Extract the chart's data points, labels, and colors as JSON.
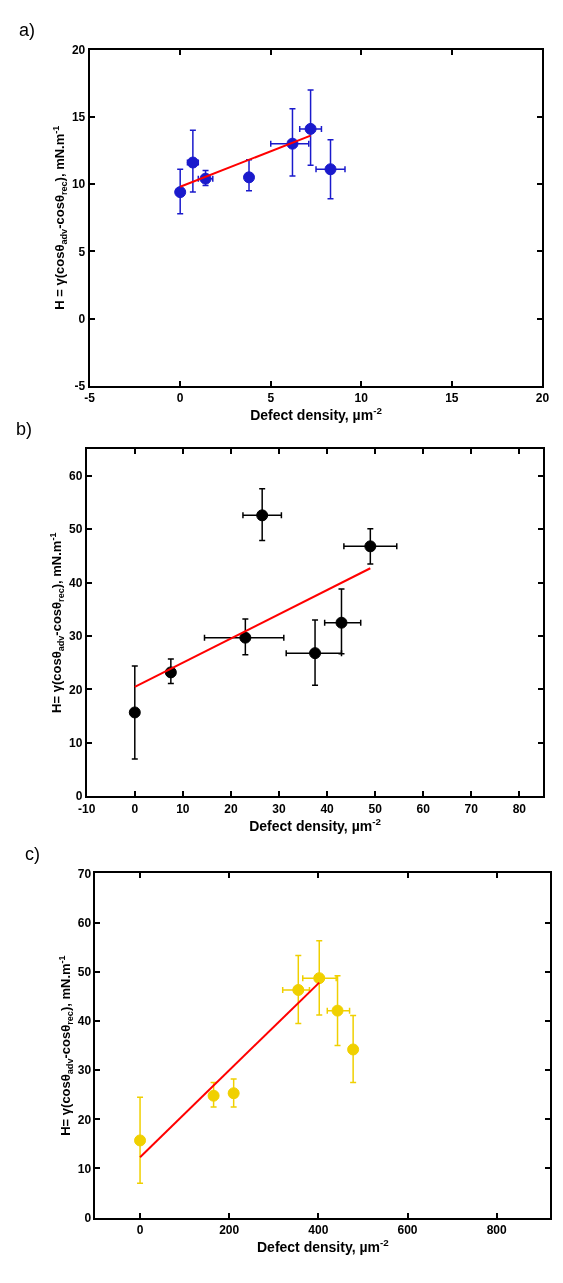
{
  "chart_data": [
    {
      "type": "scatter",
      "xlabel": "Defect density, µm$^{-2}$",
      "ylabel": "H = γ(cosθ$_{adv}$-cosθ$_{rec}$), mN.m$^{-1}$",
      "annotations": [
        "a)"
      ],
      "xlim": [
        -5,
        20
      ],
      "xticks": [
        -5,
        0,
        5,
        10,
        15,
        20
      ],
      "ylim": [
        -5,
        20
      ],
      "yticks": [
        -5,
        0,
        5,
        10,
        15,
        20
      ],
      "series": [
        {
          "marker": "circle",
          "color": "#1a1acc",
          "x": [
            0,
            0.7,
            1.4,
            3.8,
            6.2,
            7.2,
            8.3
          ],
          "values": [
            9.4,
            11.6,
            10.4,
            10.5,
            13.0,
            14.1,
            11.1
          ],
          "errors": [
            [
              7.8,
              11.1
            ],
            [
              9.4,
              14.0
            ],
            [
              9.9,
              11.0
            ],
            [
              9.5,
              11.8
            ],
            [
              10.6,
              15.6
            ],
            [
              11.4,
              17.0
            ],
            [
              8.9,
              13.3
            ]
          ],
          "xerrors": [
            null,
            [
              0.4,
              1.0
            ],
            [
              1.0,
              1.8
            ],
            null,
            [
              5.0,
              7.1
            ],
            [
              6.6,
              7.8
            ],
            [
              7.5,
              9.1
            ]
          ]
        },
        {
          "type": "line",
          "color": "#ff0000",
          "x": [
            0,
            7.2
          ],
          "values": [
            9.8,
            13.6
          ]
        }
      ]
    },
    {
      "type": "scatter",
      "xlabel": "Defect density, µm$^{-2}$",
      "ylabel": "H= γ(cosθ$_{adv}$-cosθ$_{rec}$), mN.m$^{-1}$",
      "annotations": [
        "b)"
      ],
      "xlim": [
        -10,
        85
      ],
      "xticks": [
        -10,
        0,
        10,
        20,
        30,
        40,
        50,
        60,
        70,
        80
      ],
      "ylim": [
        0,
        65
      ],
      "yticks": [
        0,
        10,
        20,
        30,
        40,
        50,
        60
      ],
      "series": [
        {
          "marker": "circle",
          "color": "#000000",
          "x": [
            0,
            7.5,
            23,
            26.5,
            37.5,
            43,
            49
          ],
          "values": [
            15.7,
            23.2,
            29.7,
            52.6,
            26.8,
            32.5,
            46.8
          ],
          "errors": [
            [
              7,
              24.4
            ],
            [
              21.1,
              25.7
            ],
            [
              26.5,
              33.2
            ],
            [
              47.9,
              57.6
            ],
            [
              20.8,
              33
            ],
            [
              26.7,
              38.8
            ],
            [
              43.5,
              50.1
            ]
          ],
          "xerrors": [
            null,
            null,
            [
              14.5,
              31
            ],
            [
              22.5,
              30.5
            ],
            [
              31.5,
              43
            ],
            [
              39.5,
              47
            ],
            [
              43.5,
              54.5
            ]
          ]
        },
        {
          "type": "line",
          "color": "#ff0000",
          "x": [
            0,
            49
          ],
          "values": [
            20.5,
            42.7
          ]
        }
      ]
    },
    {
      "type": "scatter",
      "xlabel": "Defect density, µm$^{-2}$",
      "ylabel": "H= γ(cosθ$_{adv}$-cosθ$_{rec}$), mN.m$^{-1}$",
      "annotations": [
        "c)"
      ],
      "xlim": [
        -100,
        920
      ],
      "xticks": [
        0,
        200,
        400,
        600,
        800
      ],
      "ylim": [
        0,
        70
      ],
      "yticks": [
        0,
        10,
        20,
        30,
        40,
        50,
        60,
        70
      ],
      "series": [
        {
          "marker": "circle",
          "color": "#f0d000",
          "x": [
            0,
            165,
            210,
            355,
            402,
            443,
            478
          ],
          "values": [
            15.7,
            24.8,
            25.3,
            46.3,
            48.7,
            42.1,
            34.2
          ],
          "errors": [
            [
              7,
              24.5
            ],
            [
              22.5,
              27.5
            ],
            [
              22.5,
              28.2
            ],
            [
              39.5,
              53.3
            ],
            [
              41.2,
              56.3
            ],
            [
              35,
              49.2
            ],
            [
              27.5,
              41.1
            ]
          ],
          "xerrors": [
            null,
            null,
            null,
            [
              320,
              380
            ],
            [
              365,
              440
            ],
            [
              420,
              470
            ],
            null
          ]
        },
        {
          "type": "line",
          "color": "#ff0000",
          "x": [
            0,
            402
          ],
          "values": [
            12.3,
            47.8
          ]
        }
      ]
    }
  ]
}
